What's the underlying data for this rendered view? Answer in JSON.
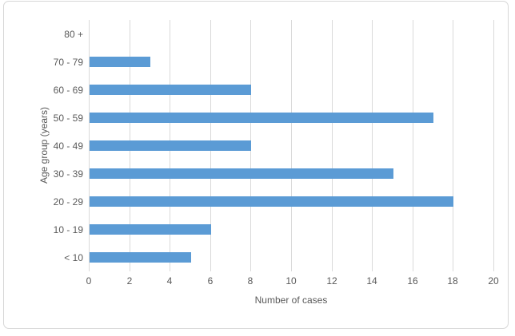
{
  "chart_data": {
    "type": "bar",
    "orientation": "horizontal",
    "title": "",
    "xlabel": "Number of cases",
    "ylabel": "Age group (years)",
    "categories": [
      "80 +",
      "70 - 79",
      "60 - 69",
      "50 - 59",
      "40 - 49",
      "30 - 39",
      "20 - 29",
      "10 - 19",
      "< 10"
    ],
    "values": [
      0,
      3,
      8,
      17,
      8,
      15,
      18,
      6,
      5
    ],
    "xlim": [
      0,
      20
    ],
    "x_ticks": [
      0,
      2,
      4,
      6,
      8,
      10,
      12,
      14,
      16,
      18,
      20
    ],
    "grid": true,
    "legend": false,
    "colors": {
      "bar": "#5B9BD5",
      "grid": "#D9D9D9",
      "text": "#595959",
      "frame_border": "#D7D7D7",
      "background": "#FFFFFF"
    }
  }
}
